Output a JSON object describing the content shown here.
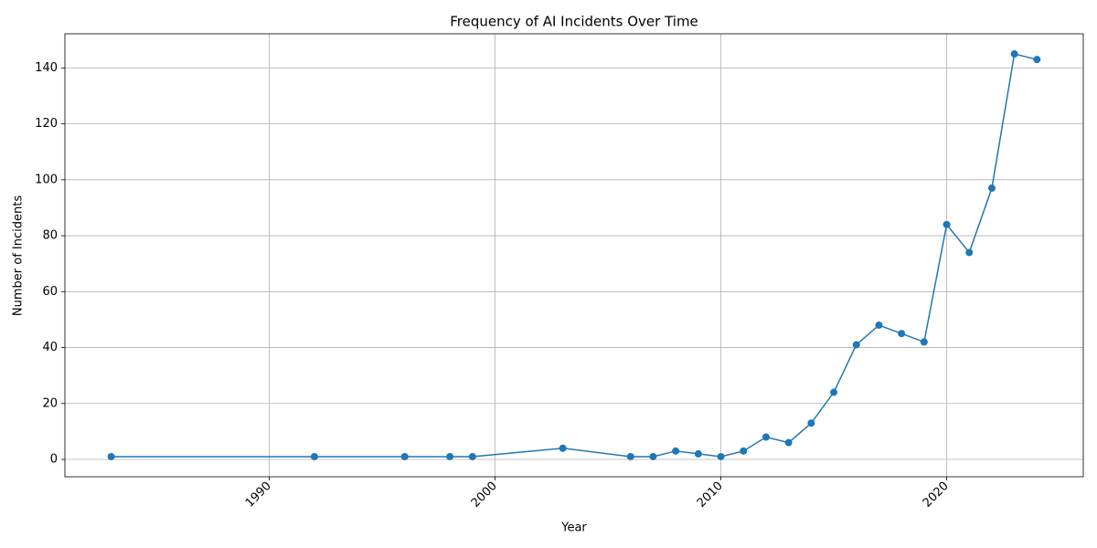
{
  "chart_data": {
    "type": "line",
    "title": "Frequency of AI Incidents Over Time",
    "x_label": "Year",
    "y_label": "Number of Incidents",
    "x": [
      1983,
      1992,
      1996,
      1998,
      1999,
      2003,
      2006,
      2007,
      2008,
      2009,
      2010,
      2011,
      2012,
      2013,
      2014,
      2015,
      2016,
      2017,
      2018,
      2019,
      2020,
      2021,
      2022,
      2023,
      2024
    ],
    "series": [
      {
        "color": "#1f77b4",
        "values": [
          1,
          1,
          1,
          1,
          1,
          4,
          1,
          1,
          3,
          2,
          1,
          3,
          8,
          6,
          13,
          24,
          41,
          48,
          45,
          42,
          84,
          74,
          97,
          145,
          143
        ]
      }
    ],
    "xlim": [
      1980.95,
      2026.05
    ],
    "xticks": [
      1990,
      2000,
      2010,
      2020
    ],
    "ylim": [
      -6.2,
      152.2
    ],
    "yticks": [
      0,
      20,
      40,
      60,
      80,
      100,
      120,
      140
    ],
    "grid": true
  }
}
